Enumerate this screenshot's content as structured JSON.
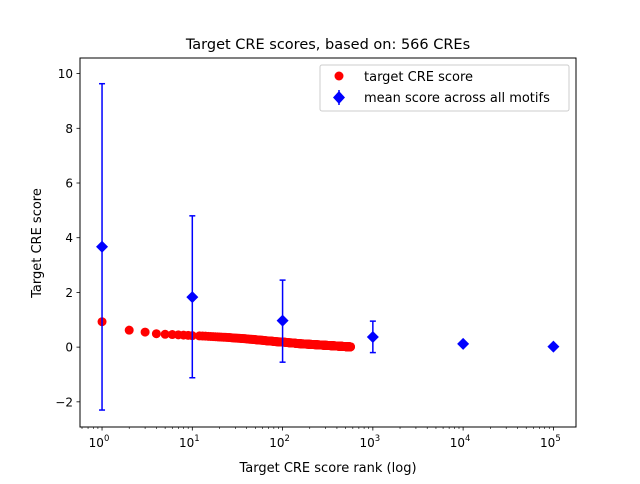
{
  "chart_data": {
    "type": "scatter",
    "title": "Target CRE scores, based on: 566 CREs",
    "xlabel": "Target CRE score rank (log)",
    "ylabel": "Target CRE score",
    "xscale": "log",
    "xlim": [
      0.57,
      178000
    ],
    "ylim": [
      -2.92,
      10.57
    ],
    "xticks": [
      {
        "value": 1,
        "base": "10",
        "exp": "0"
      },
      {
        "value": 10,
        "base": "10",
        "exp": "1"
      },
      {
        "value": 100,
        "base": "10",
        "exp": "2"
      },
      {
        "value": 1000,
        "base": "10",
        "exp": "3"
      },
      {
        "value": 10000,
        "base": "10",
        "exp": "4"
      },
      {
        "value": 100000,
        "base": "10",
        "exp": "5"
      }
    ],
    "yticks": [
      {
        "value": -2,
        "label": "−2"
      },
      {
        "value": 0,
        "label": "0"
      },
      {
        "value": 2,
        "label": "2"
      },
      {
        "value": 4,
        "label": "4"
      },
      {
        "value": 6,
        "label": "6"
      },
      {
        "value": 8,
        "label": "8"
      },
      {
        "value": 10,
        "label": "10"
      }
    ],
    "grid": false,
    "legend_position": "top-right",
    "series": [
      {
        "name": "target CRE score",
        "color": "#ff0000",
        "marker": "circle",
        "points": [
          [
            1,
            0.93
          ],
          [
            2,
            0.62
          ],
          [
            3,
            0.55
          ],
          [
            4,
            0.49
          ],
          [
            5,
            0.47
          ],
          [
            6,
            0.46
          ],
          [
            7,
            0.45
          ],
          [
            8,
            0.44
          ],
          [
            9,
            0.43
          ],
          [
            10,
            0.42
          ],
          [
            12,
            0.41
          ],
          [
            14,
            0.4
          ],
          [
            16,
            0.39
          ],
          [
            18,
            0.38
          ],
          [
            20,
            0.37
          ],
          [
            23,
            0.36
          ],
          [
            26,
            0.35
          ],
          [
            30,
            0.33
          ],
          [
            34,
            0.32
          ],
          [
            38,
            0.31
          ],
          [
            43,
            0.29
          ],
          [
            48,
            0.28
          ],
          [
            54,
            0.26
          ],
          [
            60,
            0.25
          ],
          [
            67,
            0.23
          ],
          [
            75,
            0.22
          ],
          [
            84,
            0.2
          ],
          [
            94,
            0.19
          ],
          [
            105,
            0.18
          ],
          [
            118,
            0.16
          ],
          [
            132,
            0.15
          ],
          [
            148,
            0.13
          ],
          [
            165,
            0.12
          ],
          [
            185,
            0.11
          ],
          [
            207,
            0.1
          ],
          [
            231,
            0.09
          ],
          [
            258,
            0.08
          ],
          [
            288,
            0.07
          ],
          [
            322,
            0.06
          ],
          [
            360,
            0.05
          ],
          [
            400,
            0.04
          ],
          [
            445,
            0.03
          ],
          [
            495,
            0.02
          ],
          [
            530,
            0.015
          ],
          [
            566,
            0.01
          ]
        ]
      },
      {
        "name": "mean score across all motifs",
        "color": "#0000ff",
        "marker": "diamond",
        "points": [
          {
            "x": 1,
            "y": 3.67,
            "ylow": -2.3,
            "yhigh": 9.63
          },
          {
            "x": 10,
            "y": 1.83,
            "ylow": -1.12,
            "yhigh": 4.8
          },
          {
            "x": 100,
            "y": 0.97,
            "ylow": -0.55,
            "yhigh": 2.45
          },
          {
            "x": 1000,
            "y": 0.37,
            "ylow": -0.2,
            "yhigh": 0.95
          },
          {
            "x": 10000,
            "y": 0.12,
            "ylow": 0.05,
            "yhigh": 0.19
          },
          {
            "x": 100000,
            "y": 0.02,
            "ylow": 0.0,
            "yhigh": 0.04
          }
        ]
      }
    ]
  }
}
